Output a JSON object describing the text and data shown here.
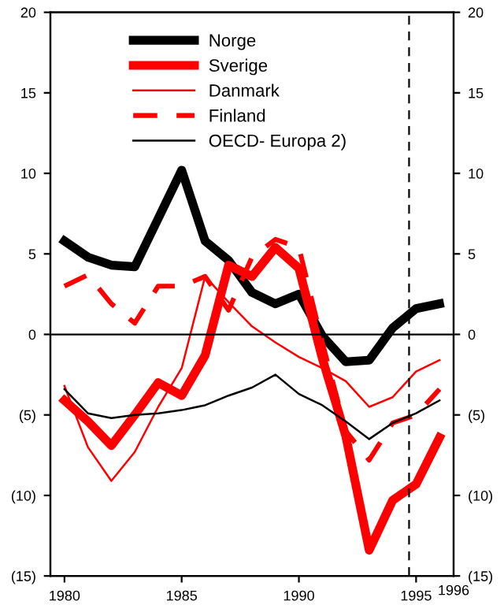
{
  "chart_data": {
    "type": "line",
    "x": [
      1980,
      1981,
      1982,
      1983,
      1984,
      1985,
      1986,
      1987,
      1988,
      1989,
      1990,
      1991,
      1992,
      1993,
      1994,
      1995,
      1996
    ],
    "series": [
      {
        "name": "Norge",
        "color": "#000000",
        "values": [
          5.8,
          4.8,
          4.3,
          4.2,
          7.2,
          10.2,
          5.8,
          4.6,
          2.6,
          1.9,
          2.5,
          -0.1,
          -1.7,
          -1.6,
          0.4,
          1.6,
          1.9
        ]
      },
      {
        "name": "Sverige",
        "color": "#ff0000",
        "values": [
          -4.1,
          -5.4,
          -6.9,
          -5.0,
          -3.0,
          -3.8,
          -1.3,
          4.3,
          3.6,
          5.4,
          4.1,
          -1.5,
          -6.3,
          -13.4,
          -10.3,
          -9.3,
          -6.4
        ]
      },
      {
        "name": "Danmark",
        "color": "#ff0000",
        "values": [
          -3.2,
          -7.0,
          -9.1,
          -7.3,
          -4.5,
          -2.1,
          3.6,
          2.0,
          0.5,
          -0.5,
          -1.4,
          -2.1,
          -2.9,
          -4.5,
          -3.9,
          -2.3,
          -1.6
        ]
      },
      {
        "name": "Finland",
        "color": "#ff0000",
        "line_style": "dashed",
        "values": [
          3.0,
          3.7,
          1.9,
          0.7,
          3.0,
          3.0,
          3.6,
          1.5,
          4.8,
          5.9,
          5.4,
          -0.5,
          -6.0,
          -7.8,
          -5.5,
          -5.0,
          -3.4
        ]
      },
      {
        "name": "OECD- Europa 2)",
        "color": "#000000",
        "values": [
          -3.4,
          -4.9,
          -5.2,
          -5.0,
          -4.9,
          -4.7,
          -4.4,
          -3.8,
          -3.3,
          -2.5,
          -3.7,
          -4.4,
          -5.4,
          -6.5,
          -5.5,
          -4.9,
          -4.1
        ]
      }
    ],
    "xlim": [
      1979.4,
      1996.6
    ],
    "xticks": [
      1980,
      1985,
      1990,
      1995
    ],
    "annotations": [
      "1996"
    ],
    "ylim": [
      -15,
      20
    ],
    "yticks": [
      {
        "value": -15,
        "label": "(15)"
      },
      {
        "value": -10,
        "label": "(10)"
      },
      {
        "value": -5,
        "label": "(5)"
      },
      0,
      5,
      10,
      15,
      20
    ],
    "y2lim": [
      -15,
      20
    ],
    "y2ticks": [
      {
        "value": -15,
        "label": "(15)"
      },
      {
        "value": -10,
        "label": "(10)"
      },
      {
        "value": -5,
        "label": "(5)"
      },
      0,
      5,
      10,
      15,
      20
    ],
    "ref_lines": [
      {
        "axis": "y",
        "value": 0,
        "color": "#000000",
        "line_style": "solid"
      },
      {
        "axis": "x",
        "value": 1994.7,
        "color": "#000000",
        "line_style": "dashed"
      }
    ],
    "legend": "top",
    "grid": false,
    "marker": "none"
  }
}
